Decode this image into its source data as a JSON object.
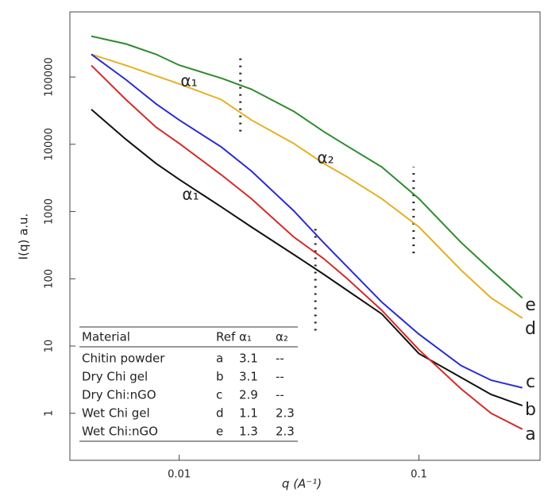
{
  "chart_data": {
    "type": "line",
    "xlabel": "q (A⁻¹)",
    "ylabel": "I(q) a.u.",
    "log_x": true,
    "log_y": true,
    "xlim": [
      0.0035,
      0.32
    ],
    "ylim": [
      0.2,
      930000
    ],
    "xticks": [
      0.01,
      0.1
    ],
    "yticks": [
      1,
      10,
      100,
      1000,
      10000,
      100000
    ],
    "x": [
      0.0043,
      0.006,
      0.008,
      0.01,
      0.015,
      0.02,
      0.03,
      0.04,
      0.05,
      0.07,
      0.1,
      0.15,
      0.2,
      0.27
    ],
    "series": [
      {
        "name": "e",
        "color": "#2e8b2e",
        "values": [
          405000,
          310000,
          218000,
          150000,
          96000,
          66000,
          31000,
          15500,
          9500,
          4600,
          1550,
          345,
          134,
          52
        ]
      },
      {
        "name": "d",
        "color": "#e6b022",
        "values": [
          218000,
          149000,
          104000,
          79000,
          46000,
          23000,
          10300,
          5200,
          3300,
          1550,
          590,
          134,
          52,
          26
        ]
      },
      {
        "name": "c",
        "color": "#2b2bd0",
        "values": [
          218000,
          91000,
          40000,
          23000,
          9100,
          4000,
          1030,
          345,
          153,
          45,
          15,
          5.1,
          3.1,
          2.4
        ]
      },
      {
        "name": "b",
        "color": "#111111",
        "values": [
          33000,
          11800,
          5200,
          3000,
          1170,
          590,
          230,
          117,
          68,
          30,
          7.7,
          3.4,
          1.9,
          1.3
        ]
      },
      {
        "name": "a",
        "color": "#d42a2a",
        "values": [
          149000,
          46000,
          18000,
          10300,
          3500,
          1550,
          420,
          200,
          102,
          34,
          8.8,
          2.3,
          1.0,
          0.58
        ]
      }
    ],
    "crossovers": [
      {
        "x": 0.018,
        "y": [
          15500,
          195000
        ]
      },
      {
        "x": 0.037,
        "y": [
          17,
          650
        ]
      },
      {
        "x": 0.095,
        "y": [
          240,
          4600
        ]
      }
    ],
    "annotations": [
      "α₁",
      "α₂",
      "α₁"
    ],
    "table": {
      "columns": [
        "Material",
        "Ref",
        "α₁",
        "α₂"
      ],
      "rows": [
        [
          "Chitin powder",
          "a",
          3.1,
          "--"
        ],
        [
          "Dry Chi gel",
          "b",
          3.1,
          "--"
        ],
        [
          "Dry Chi:nGO",
          "c",
          2.9,
          "--"
        ],
        [
          "Wet Chi gel",
          "d",
          1.1,
          2.3
        ],
        [
          "Wet Chi:nGO",
          "e",
          1.3,
          2.3
        ]
      ]
    }
  }
}
